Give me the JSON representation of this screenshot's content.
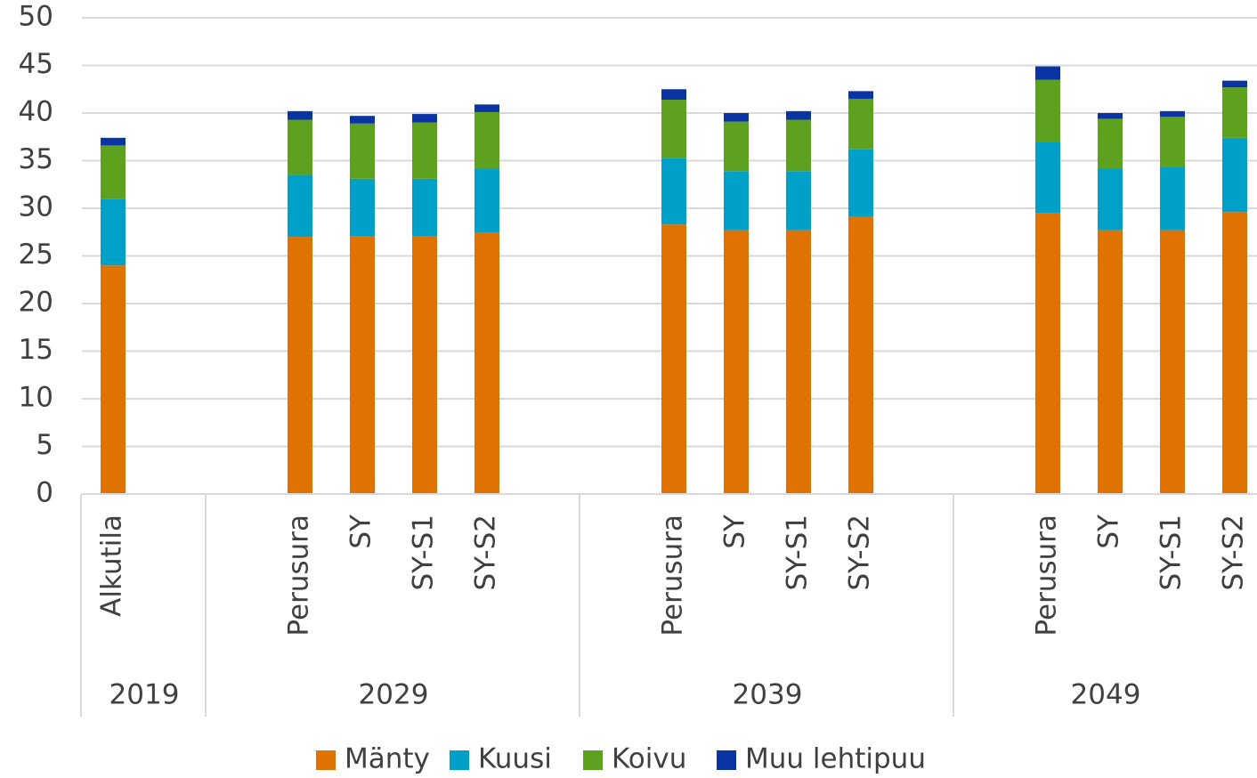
{
  "chart_data": {
    "type": "stacked_bar",
    "categories": [
      {
        "group": "2019",
        "label": "Alkutila"
      },
      {
        "group": "2019",
        "label": null
      },
      {
        "group": "2029",
        "label": null
      },
      {
        "group": "2029",
        "label": "Perusura"
      },
      {
        "group": "2029",
        "label": "SY"
      },
      {
        "group": "2029",
        "label": "SY-S1"
      },
      {
        "group": "2029",
        "label": "SY-S2"
      },
      {
        "group": "2029",
        "label": null
      },
      {
        "group": "2039",
        "label": null
      },
      {
        "group": "2039",
        "label": "Perusura"
      },
      {
        "group": "2039",
        "label": "SY"
      },
      {
        "group": "2039",
        "label": "SY-S1"
      },
      {
        "group": "2039",
        "label": "SY-S2"
      },
      {
        "group": "2039",
        "label": null
      },
      {
        "group": "2049",
        "label": null
      },
      {
        "group": "2049",
        "label": "Perusura"
      },
      {
        "group": "2049",
        "label": "SY"
      },
      {
        "group": "2049",
        "label": "SY-S1"
      },
      {
        "group": "2049",
        "label": "SY-S2"
      }
    ],
    "series": [
      {
        "name": "Mänty",
        "color": "#df7200",
        "values": [
          24,
          null,
          null,
          27,
          27.1,
          27.1,
          27.4,
          null,
          null,
          28.3,
          27.7,
          27.7,
          29.1,
          null,
          null,
          29.5,
          27.7,
          27.7,
          29.6
        ]
      },
      {
        "name": "Kuusi",
        "color": "#00a0c8",
        "values": [
          7,
          null,
          null,
          6.5,
          6,
          6,
          6.8,
          null,
          null,
          7,
          6.2,
          6.2,
          7.1,
          null,
          null,
          7.5,
          6.5,
          6.6,
          7.8
        ]
      },
      {
        "name": "Koivu",
        "color": "#5da11f",
        "values": [
          5.6,
          null,
          null,
          5.8,
          5.8,
          5.9,
          5.9,
          null,
          null,
          6.1,
          5.2,
          5.4,
          5.3,
          null,
          null,
          6.5,
          5.2,
          5.3,
          5.3
        ]
      },
      {
        "name": "Muu lehtipuu",
        "color": "#0a33a3",
        "values": [
          0.8,
          null,
          null,
          0.9,
          0.8,
          0.9,
          0.8,
          null,
          null,
          1.1,
          0.9,
          0.9,
          0.8,
          null,
          null,
          1.4,
          0.6,
          0.6,
          0.7
        ]
      }
    ],
    "ylim": [
      0,
      50
    ],
    "yticks": [
      0,
      5,
      10,
      15,
      20,
      25,
      30,
      35,
      40,
      45,
      50
    ],
    "grid": true,
    "legend": "bottom"
  }
}
